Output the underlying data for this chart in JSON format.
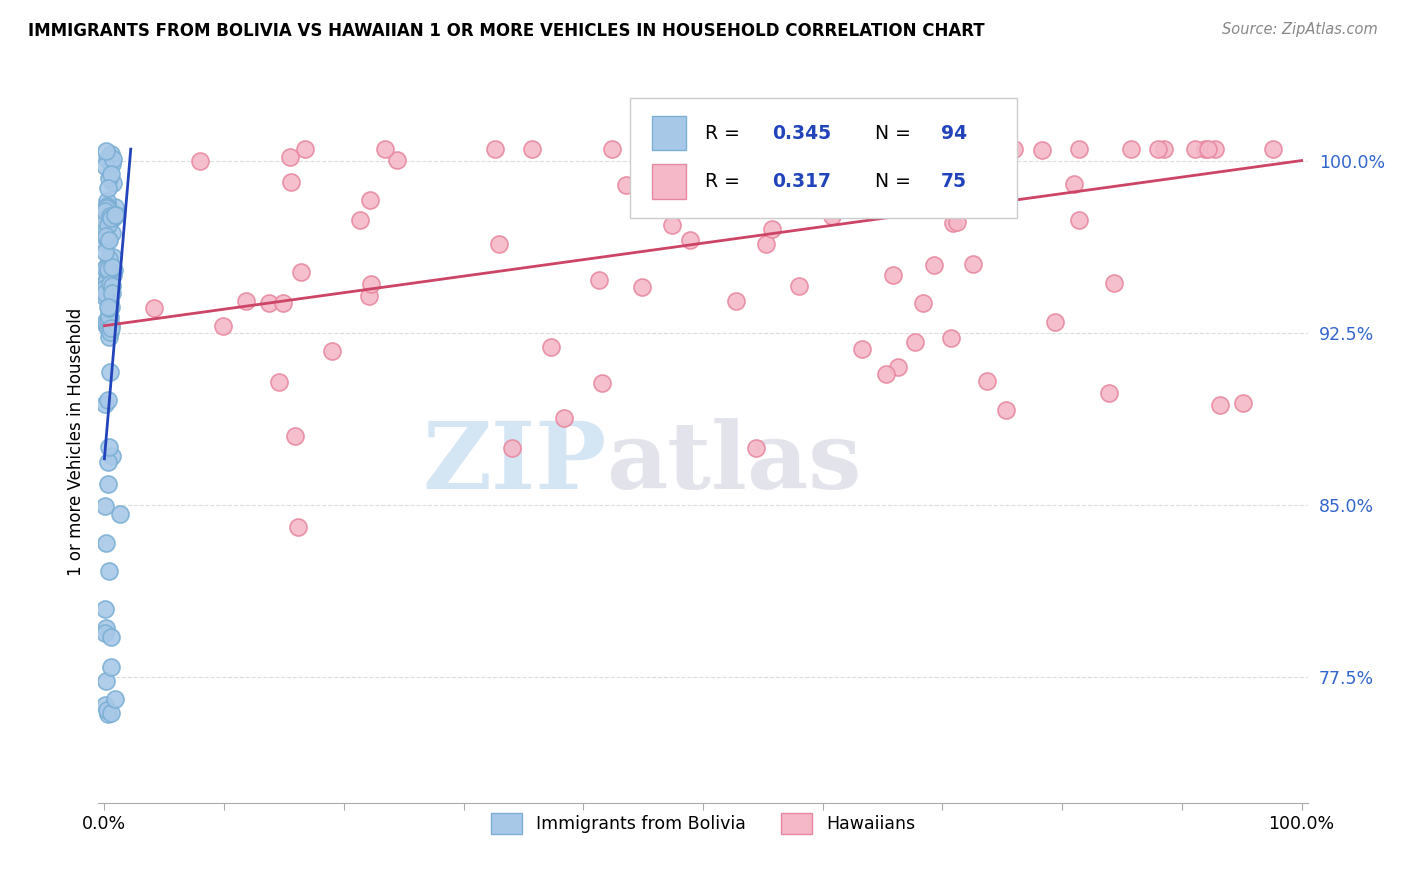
{
  "title": "IMMIGRANTS FROM BOLIVIA VS HAWAIIAN 1 OR MORE VEHICLES IN HOUSEHOLD CORRELATION CHART",
  "source": "Source: ZipAtlas.com",
  "ylabel": "1 or more Vehicles in Household",
  "watermark_zip": "ZIP",
  "watermark_atlas": "atlas",
  "xlim": [
    -0.005,
    1.005
  ],
  "ylim": [
    0.72,
    1.035
  ],
  "yticks": [
    0.775,
    0.85,
    0.925,
    1.0
  ],
  "ytick_labels": [
    "77.5%",
    "85.0%",
    "92.5%",
    "100.0%"
  ],
  "xtick_vals": [
    0.0,
    0.1,
    0.2,
    0.3,
    0.4,
    0.5,
    0.6,
    0.7,
    0.8,
    0.9,
    1.0
  ],
  "xtick_labels": [
    "0.0%",
    "",
    "",
    "",
    "",
    "",
    "",
    "",
    "",
    "",
    "100.0%"
  ],
  "bolivia_color": "#a8c8e8",
  "bolivia_edge": "#7bafd4",
  "hawaii_color": "#f4b8c8",
  "hawaii_edge": "#e888a0",
  "trend_blue": "#2244bb",
  "trend_pink": "#cc4466",
  "R_bolivia": 0.345,
  "N_bolivia": 94,
  "R_hawaii": 0.317,
  "N_hawaii": 75,
  "label_bolivia": "Immigrants from Bolivia",
  "label_hawaii": "Hawaiians",
  "legend_text_color": "#2244bb",
  "ytick_color": "#3366cc",
  "grid_color": "#dddddd",
  "bottom_axis_color": "#aaaaaa",
  "hawaii_trend_start_y": 0.928,
  "hawaii_trend_end_y": 1.0,
  "bolivia_trend_start_x": 0.0,
  "bolivia_trend_start_y": 0.87,
  "bolivia_trend_end_x": 0.022,
  "bolivia_trend_end_y": 1.005
}
